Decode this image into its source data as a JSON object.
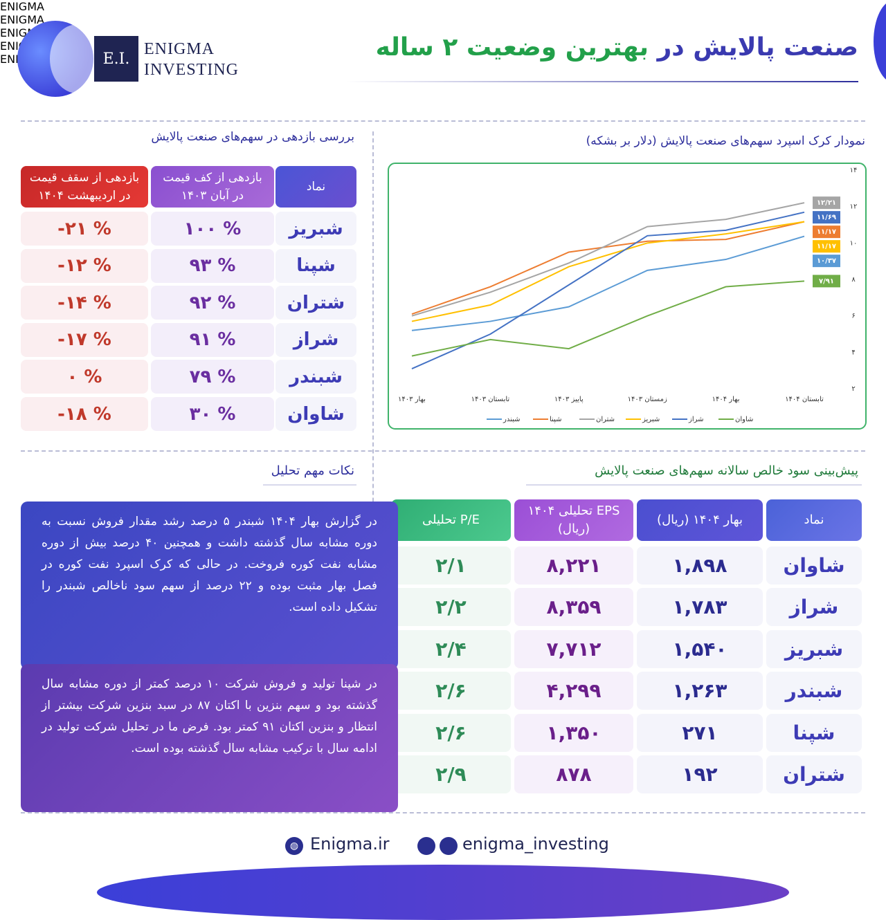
{
  "header": {
    "logo_mark": "E.I.",
    "logo_line1": "ENIGMA",
    "logo_line2": "INVESTING",
    "title_part1": "صنعت پالایش در",
    "title_part2": "بهترین وضعیت ۲ ساله"
  },
  "watermark": "ENIGMA",
  "returns": {
    "title": "بررسی بازدهی در سهم‌های صنعت پالایش",
    "columns": [
      "نماد",
      "بازدهی از کف قیمت در آبان ۱۴۰۳",
      "بازدهی از سقف قیمت در اردیبهشت ۱۴۰۴"
    ],
    "rows": [
      [
        "شبریز",
        "۱۰۰ %",
        "-۲۱ %"
      ],
      [
        "شپنا",
        "۹۳ %",
        "-۱۲ %"
      ],
      [
        "شتران",
        "۹۲ %",
        "-۱۴ %"
      ],
      [
        "شراز",
        "۹۱ %",
        "-۱۷ %"
      ],
      [
        "شبندر",
        "۷۹ %",
        "۰ %"
      ],
      [
        "شاوان",
        "۳۰ %",
        "-۱۸ %"
      ]
    ]
  },
  "chart_data": {
    "type": "line",
    "title": "نمودار کرک اسپرد سهم‌های صنعت پالایش (دلار بر بشکه)",
    "categories": [
      "بهار ۱۴۰۳",
      "تابستان ۱۴۰۳",
      "پاییز ۱۴۰۳",
      "زمستان ۱۴۰۳",
      "بهار ۱۴۰۴",
      "تابستان ۱۴۰۴"
    ],
    "ylim": [
      2,
      14
    ],
    "yticks": [
      {
        "value": 2,
        "label": "۲"
      },
      {
        "value": 4,
        "label": "۴"
      },
      {
        "value": 6,
        "label": "۶"
      },
      {
        "value": 8,
        "label": "۸"
      },
      {
        "value": 10,
        "label": "۱۰"
      },
      {
        "value": 12,
        "label": "۱۲"
      },
      {
        "value": 14,
        "label": "۱۴"
      }
    ],
    "series": [
      {
        "name": "شبندر",
        "color": "#5b9bd5",
        "values": [
          5.2,
          5.7,
          6.5,
          8.5,
          9.1,
          10.37
        ],
        "value_labels": [
          null,
          null,
          null,
          null,
          null,
          "۱۰/۳۷"
        ]
      },
      {
        "name": "شپنا",
        "color": "#ed7d31",
        "values": [
          6.1,
          7.6,
          9.5,
          10.1,
          10.2,
          11.17
        ],
        "value_labels": [
          null,
          null,
          null,
          null,
          null,
          "۱۱/۱۷"
        ]
      },
      {
        "name": "شتران",
        "color": "#a5a5a5",
        "values": [
          6.0,
          7.3,
          8.9,
          10.9,
          11.3,
          12.21
        ],
        "value_labels": [
          null,
          null,
          null,
          null,
          null,
          "۱۲/۲۱"
        ]
      },
      {
        "name": "شبریز",
        "color": "#ffc000",
        "values": [
          5.7,
          6.6,
          8.7,
          10.0,
          10.5,
          11.17
        ],
        "value_labels": [
          null,
          null,
          null,
          null,
          null,
          "۱۱/۱۷"
        ]
      },
      {
        "name": "شراز",
        "color": "#4472c4",
        "values": [
          3.1,
          5.0,
          7.7,
          10.4,
          10.7,
          11.69
        ],
        "value_labels": [
          null,
          null,
          null,
          null,
          null,
          "۱۱/۶۹"
        ]
      },
      {
        "name": "شاوان",
        "color": "#70ad47",
        "values": [
          3.8,
          4.7,
          4.2,
          6.0,
          7.6,
          7.91
        ],
        "value_labels": [
          null,
          null,
          null,
          null,
          null,
          "۷/۹۱"
        ]
      }
    ]
  },
  "notes": {
    "title": "نکات مهم تحلیل",
    "paragraphs": [
      "در گزارش بهار ۱۴۰۴ شبندر ۵ درصد رشد مقدار فروش نسبت به دوره مشابه سال گذشته داشت و همچنین ۴۰ درصد بیش از دوره مشابه نفت کوره فروخت. در حالی که کرک اسپرد نفت کوره در فصل بهار مثبت بوده و ۲۲ درصد از سهم سود ناخالص شبندر را تشکیل داده است.",
      "در شپنا تولید و فروش شرکت ۱۰ درصد کمتر از دوره مشابه سال گذشته بود و سهم بنزین با اکتان ۸۷ در سبد بنزین شرکت بیشتر از انتظار و بنزین اکتان ۹۱ کمتر بود. فرض ما در تحلیل شرکت تولید در ادامه سال با ترکیب مشابه سال گذشته بوده است."
    ]
  },
  "eps": {
    "title": "پیش‌بینی سود خالص سالانه سهم‌های صنعت پالایش",
    "columns": [
      "نماد",
      "بهار ۱۴۰۴ (ریال)",
      "EPS تحلیلی ۱۴۰۴ (ریال)",
      "P/E تحلیلی"
    ],
    "rows": [
      [
        "شاوان",
        "۱,۸۹۸",
        "۸,۲۲۱",
        "۲/۱"
      ],
      [
        "شراز",
        "۱,۷۸۳",
        "۸,۳۵۹",
        "۲/۲"
      ],
      [
        "شبریز",
        "۱,۵۴۰",
        "۷,۷۱۲",
        "۲/۴"
      ],
      [
        "شبندر",
        "۱,۲۶۳",
        "۴,۲۹۹",
        "۲/۶"
      ],
      [
        "شپنا",
        "۲۷۱",
        "۱,۳۵۰",
        "۲/۶"
      ],
      [
        "شتران",
        "۱۹۲",
        "۸۷۸",
        "۲/۹"
      ]
    ]
  },
  "footer": {
    "website": "Enigma.ir",
    "social": "enigma_investing"
  }
}
